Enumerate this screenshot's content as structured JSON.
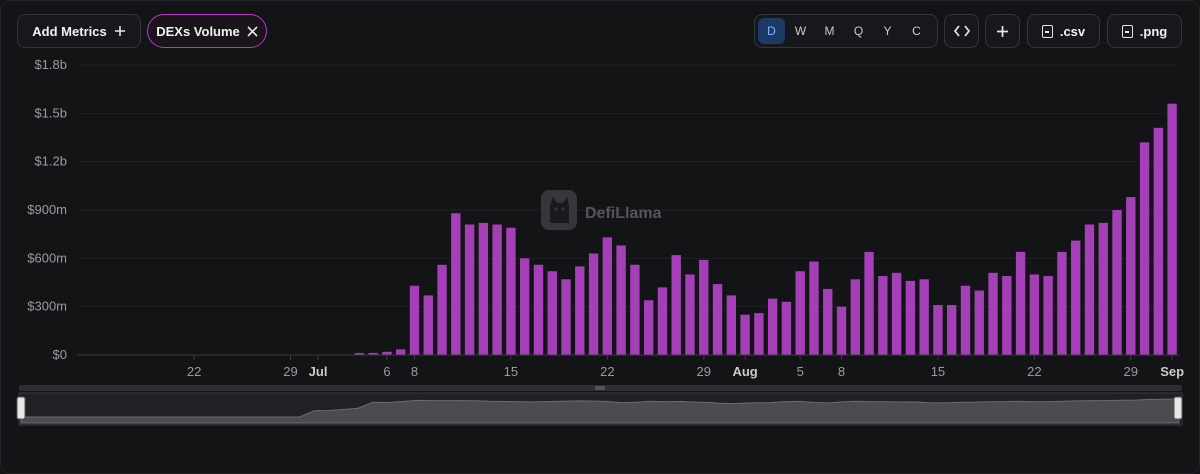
{
  "toolbar": {
    "add_metrics_label": "Add Metrics",
    "add_icon": "plus-icon",
    "metric_chip_label": "DEXs Volume",
    "remove_icon": "close-icon",
    "periods": [
      "D",
      "W",
      "M",
      "Q",
      "Y",
      "C"
    ],
    "active_period": "D",
    "embed_icon": "code-icon",
    "plus_icon": "plus-icon",
    "csv_label": ".csv",
    "png_label": ".png"
  },
  "watermark": {
    "text": "DefiLlama",
    "icon": "llama-logo-icon"
  },
  "colors": {
    "bar": "#a53fb8",
    "background": "#131416",
    "axis_text": "#9a9ba0",
    "active_period": "#1d3a66"
  },
  "chart_data": {
    "type": "bar",
    "title": "",
    "xlabel": "",
    "ylabel": "",
    "ylim": [
      0,
      1800000000
    ],
    "y_ticks": [
      {
        "value": 0,
        "label": "$0"
      },
      {
        "value": 300000000,
        "label": "$300m"
      },
      {
        "value": 600000000,
        "label": "$600m"
      },
      {
        "value": 900000000,
        "label": "$900m"
      },
      {
        "value": 1200000000,
        "label": "$1.2b"
      },
      {
        "value": 1500000000,
        "label": "$1.5b"
      },
      {
        "value": 1800000000,
        "label": "$1.8b"
      }
    ],
    "x_range": [
      "2025-06-14",
      "2025-09-01"
    ],
    "x_ticks": [
      {
        "date": "2025-06-22",
        "label": "22"
      },
      {
        "date": "2025-06-29",
        "label": "29"
      },
      {
        "date": "2025-07-01",
        "label": "Jul"
      },
      {
        "date": "2025-07-06",
        "label": "6"
      },
      {
        "date": "2025-07-08",
        "label": "8"
      },
      {
        "date": "2025-07-15",
        "label": "15"
      },
      {
        "date": "2025-07-22",
        "label": "22"
      },
      {
        "date": "2025-07-29",
        "label": "29"
      },
      {
        "date": "2025-08-01",
        "label": "Aug"
      },
      {
        "date": "2025-08-05",
        "label": "5"
      },
      {
        "date": "2025-08-08",
        "label": "8"
      },
      {
        "date": "2025-08-15",
        "label": "15"
      },
      {
        "date": "2025-08-22",
        "label": "22"
      },
      {
        "date": "2025-08-29",
        "label": "29"
      },
      {
        "date": "2025-09-01",
        "label": "Sep"
      }
    ],
    "grid": true,
    "legend": "none",
    "series": [
      {
        "dates": [
          "2025-06-14",
          "2025-06-15",
          "2025-06-16",
          "2025-06-17",
          "2025-06-18",
          "2025-06-19",
          "2025-06-20",
          "2025-06-21",
          "2025-06-22",
          "2025-06-23",
          "2025-06-24",
          "2025-06-25",
          "2025-06-26",
          "2025-06-27",
          "2025-06-28",
          "2025-06-29",
          "2025-06-30",
          "2025-07-01",
          "2025-07-02",
          "2025-07-03",
          "2025-07-04",
          "2025-07-05",
          "2025-07-06",
          "2025-07-07",
          "2025-07-08",
          "2025-07-09",
          "2025-07-10",
          "2025-07-11",
          "2025-07-12",
          "2025-07-13",
          "2025-07-14",
          "2025-07-15",
          "2025-07-16",
          "2025-07-17",
          "2025-07-18",
          "2025-07-19",
          "2025-07-20",
          "2025-07-21",
          "2025-07-22",
          "2025-07-23",
          "2025-07-24",
          "2025-07-25",
          "2025-07-26",
          "2025-07-27",
          "2025-07-28",
          "2025-07-29",
          "2025-07-30",
          "2025-07-31",
          "2025-08-01",
          "2025-08-02",
          "2025-08-03",
          "2025-08-04",
          "2025-08-05",
          "2025-08-06",
          "2025-08-07",
          "2025-08-08",
          "2025-08-09",
          "2025-08-10",
          "2025-08-11",
          "2025-08-12",
          "2025-08-13",
          "2025-08-14",
          "2025-08-15",
          "2025-08-16",
          "2025-08-17",
          "2025-08-18",
          "2025-08-19",
          "2025-08-20",
          "2025-08-21",
          "2025-08-22",
          "2025-08-23",
          "2025-08-24",
          "2025-08-25",
          "2025-08-26",
          "2025-08-27",
          "2025-08-28",
          "2025-08-29",
          "2025-08-30",
          "2025-08-31",
          "2025-09-01"
        ],
        "values": [
          0,
          0,
          0,
          0,
          0,
          0,
          0,
          0,
          0,
          0,
          0,
          0,
          0,
          0,
          0,
          0,
          0,
          0,
          0,
          0,
          12000000,
          13000000,
          20000000,
          35000000,
          430000000,
          370000000,
          560000000,
          880000000,
          810000000,
          820000000,
          810000000,
          790000000,
          600000000,
          560000000,
          520000000,
          470000000,
          550000000,
          630000000,
          730000000,
          680000000,
          560000000,
          340000000,
          420000000,
          620000000,
          500000000,
          590000000,
          440000000,
          370000000,
          250000000,
          260000000,
          350000000,
          330000000,
          520000000,
          580000000,
          410000000,
          300000000,
          470000000,
          640000000,
          490000000,
          510000000,
          460000000,
          470000000,
          310000000,
          310000000,
          430000000,
          400000000,
          510000000,
          490000000,
          640000000,
          500000000,
          490000000,
          640000000,
          710000000,
          810000000,
          820000000,
          900000000,
          980000000,
          1320000000,
          1410000000,
          1560000000
        ]
      }
    ]
  }
}
